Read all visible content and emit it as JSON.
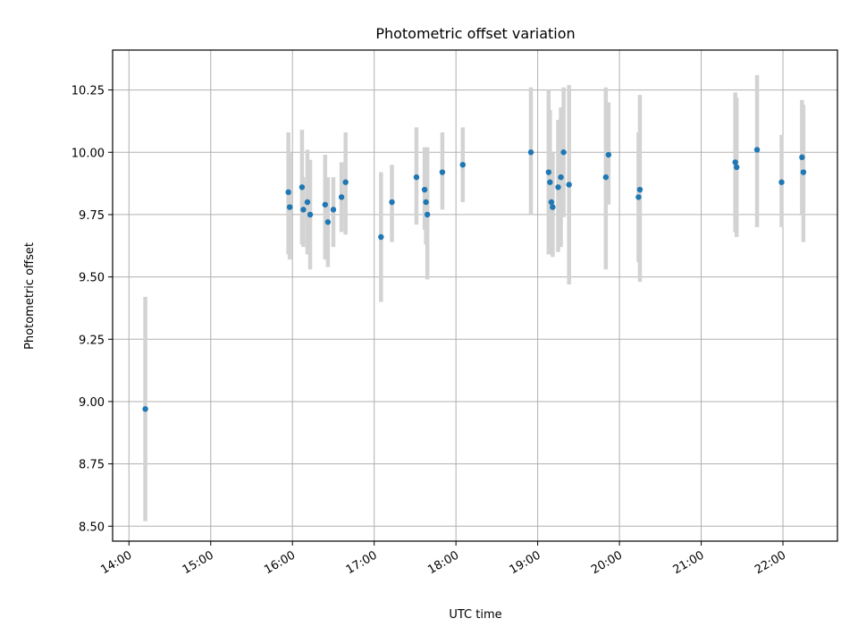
{
  "chart_data": {
    "type": "scatter",
    "title": "Photometric offset variation",
    "xlabel": "UTC time",
    "ylabel": "Photometric offset",
    "x_axis_kind": "time (UTC, hours of day)",
    "xlim": [
      "13:48",
      "22:40"
    ],
    "ylim": [
      8.44,
      10.41
    ],
    "xticks": [
      "14:00",
      "15:00",
      "16:00",
      "17:00",
      "18:00",
      "19:00",
      "20:00",
      "21:00",
      "22:00"
    ],
    "yticks": [
      8.5,
      8.75,
      9.0,
      9.25,
      9.5,
      9.75,
      10.0,
      10.25
    ],
    "ytick_labels": [
      "8.50",
      "8.75",
      "9.00",
      "9.25",
      "9.50",
      "9.75",
      "10.00",
      "10.25"
    ],
    "grid": true,
    "legend": "none",
    "colors": {
      "marker": "#1f77b4",
      "errorbar": "#d3d3d3",
      "grid": "#b0b0b0"
    },
    "series": [
      {
        "points": [
          {
            "time": "14:12",
            "value": 8.97,
            "err_low": 8.52,
            "err_high": 9.42
          },
          {
            "time": "15:57",
            "value": 9.84,
            "err_low": 9.59,
            "err_high": 10.08
          },
          {
            "time": "15:58",
            "value": 9.78,
            "err_low": 9.57,
            "err_high": 10.0
          },
          {
            "time": "16:07",
            "value": 9.86,
            "err_low": 9.63,
            "err_high": 10.09
          },
          {
            "time": "16:08",
            "value": 9.77,
            "err_low": 9.62,
            "err_high": 9.9
          },
          {
            "time": "16:11",
            "value": 9.8,
            "err_low": 9.59,
            "err_high": 10.01
          },
          {
            "time": "16:13",
            "value": 9.75,
            "err_low": 9.53,
            "err_high": 9.97
          },
          {
            "time": "16:24",
            "value": 9.79,
            "err_low": 9.57,
            "err_high": 9.99
          },
          {
            "time": "16:26",
            "value": 9.72,
            "err_low": 9.54,
            "err_high": 9.9
          },
          {
            "time": "16:30",
            "value": 9.77,
            "err_low": 9.62,
            "err_high": 9.9
          },
          {
            "time": "16:36",
            "value": 9.82,
            "err_low": 9.68,
            "err_high": 9.96
          },
          {
            "time": "16:39",
            "value": 9.88,
            "err_low": 9.67,
            "err_high": 10.08
          },
          {
            "time": "17:05",
            "value": 9.66,
            "err_low": 9.4,
            "err_high": 9.92
          },
          {
            "time": "17:13",
            "value": 9.8,
            "err_low": 9.64,
            "err_high": 9.95
          },
          {
            "time": "17:31",
            "value": 9.9,
            "err_low": 9.71,
            "err_high": 10.1
          },
          {
            "time": "17:37",
            "value": 9.85,
            "err_low": 9.69,
            "err_high": 10.02
          },
          {
            "time": "17:38",
            "value": 9.8,
            "err_low": 9.63,
            "err_high": 9.97
          },
          {
            "time": "17:39",
            "value": 9.75,
            "err_low": 9.49,
            "err_high": 10.02
          },
          {
            "time": "17:50",
            "value": 9.92,
            "err_low": 9.77,
            "err_high": 10.08
          },
          {
            "time": "18:05",
            "value": 9.95,
            "err_low": 9.8,
            "err_high": 10.1
          },
          {
            "time": "18:55",
            "value": 10.0,
            "err_low": 9.75,
            "err_high": 10.26
          },
          {
            "time": "19:08",
            "value": 9.92,
            "err_low": 9.59,
            "err_high": 10.25
          },
          {
            "time": "19:09",
            "value": 9.88,
            "err_low": 9.59,
            "err_high": 10.17
          },
          {
            "time": "19:10",
            "value": 9.8,
            "err_low": 9.6,
            "err_high": 10.0
          },
          {
            "time": "19:11",
            "value": 9.78,
            "err_low": 9.58,
            "err_high": 10.0
          },
          {
            "time": "19:15",
            "value": 9.86,
            "err_low": 9.6,
            "err_high": 10.13
          },
          {
            "time": "19:17",
            "value": 9.9,
            "err_low": 9.62,
            "err_high": 10.18
          },
          {
            "time": "19:19",
            "value": 10.0,
            "err_low": 9.74,
            "err_high": 10.26
          },
          {
            "time": "19:23",
            "value": 9.87,
            "err_low": 9.47,
            "err_high": 10.27
          },
          {
            "time": "19:50",
            "value": 9.9,
            "err_low": 9.53,
            "err_high": 10.26
          },
          {
            "time": "19:52",
            "value": 9.99,
            "err_low": 9.79,
            "err_high": 10.2
          },
          {
            "time": "20:14",
            "value": 9.82,
            "err_low": 9.56,
            "err_high": 10.08
          },
          {
            "time": "20:15",
            "value": 9.85,
            "err_low": 9.48,
            "err_high": 10.23
          },
          {
            "time": "21:25",
            "value": 9.96,
            "err_low": 9.68,
            "err_high": 10.24
          },
          {
            "time": "21:26",
            "value": 9.94,
            "err_low": 9.66,
            "err_high": 10.22
          },
          {
            "time": "21:41",
            "value": 10.01,
            "err_low": 9.7,
            "err_high": 10.31
          },
          {
            "time": "21:59",
            "value": 9.88,
            "err_low": 9.7,
            "err_high": 10.07
          },
          {
            "time": "22:14",
            "value": 9.98,
            "err_low": 9.75,
            "err_high": 10.21
          },
          {
            "time": "22:15",
            "value": 9.92,
            "err_low": 9.64,
            "err_high": 10.19
          }
        ]
      }
    ]
  }
}
